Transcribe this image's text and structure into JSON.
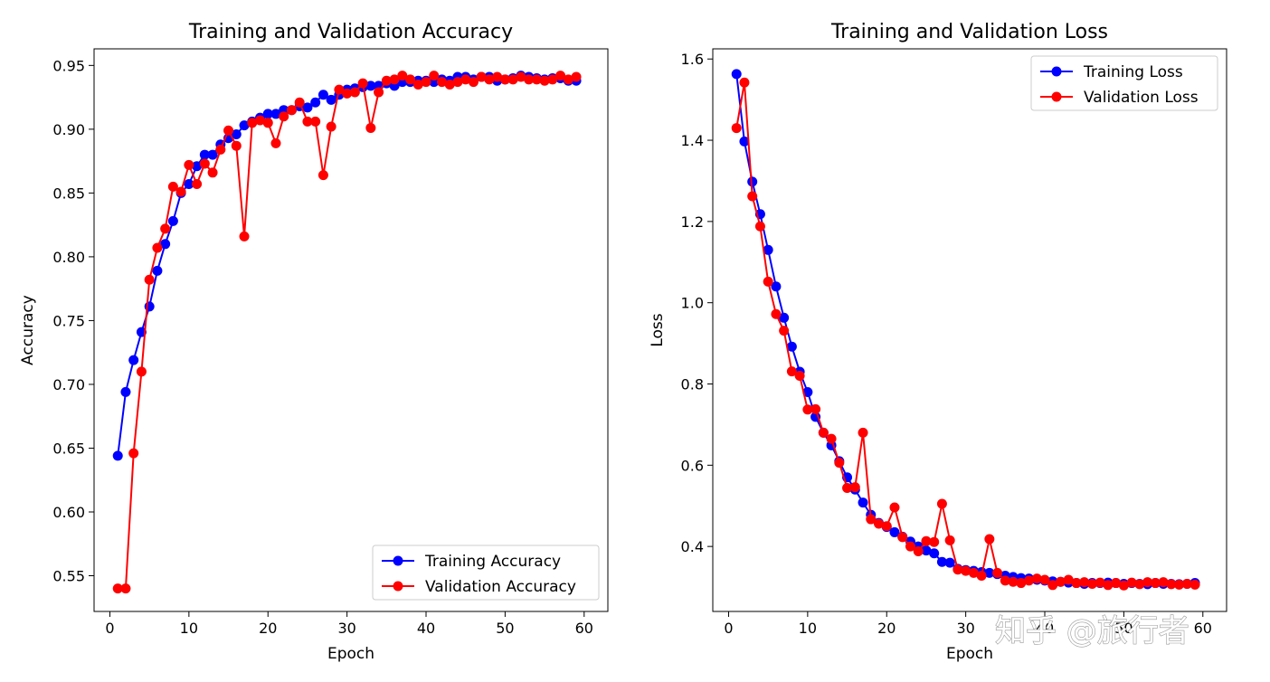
{
  "chart_data": [
    {
      "type": "line",
      "title": "Training and Validation Accuracy",
      "xlabel": "Epoch",
      "ylabel": "Accuracy",
      "xlim": [
        -2,
        63
      ],
      "ylim": [
        0.522,
        0.963
      ],
      "xticks": [
        0,
        10,
        20,
        30,
        40,
        50,
        60
      ],
      "yticks": [
        0.55,
        0.6,
        0.65,
        0.7,
        0.75,
        0.8,
        0.85,
        0.9,
        0.95
      ],
      "grid": false,
      "legend_position": "lower-right",
      "x": [
        1,
        2,
        3,
        4,
        5,
        6,
        7,
        8,
        9,
        10,
        11,
        12,
        13,
        14,
        15,
        16,
        17,
        18,
        19,
        20,
        21,
        22,
        23,
        24,
        25,
        26,
        27,
        28,
        29,
        30,
        31,
        32,
        33,
        34,
        35,
        36,
        37,
        38,
        39,
        40,
        41,
        42,
        43,
        44,
        45,
        46,
        47,
        48,
        49,
        50,
        51,
        52,
        53,
        54,
        55,
        56,
        57,
        58,
        59
      ],
      "series": [
        {
          "name": "Training Accuracy",
          "color": "#0000ff",
          "values": [
            0.644,
            0.694,
            0.719,
            0.741,
            0.761,
            0.789,
            0.81,
            0.828,
            0.85,
            0.857,
            0.871,
            0.88,
            0.88,
            0.888,
            0.893,
            0.896,
            0.903,
            0.906,
            0.909,
            0.912,
            0.912,
            0.915,
            0.915,
            0.918,
            0.917,
            0.921,
            0.927,
            0.923,
            0.927,
            0.931,
            0.932,
            0.933,
            0.934,
            0.934,
            0.936,
            0.934,
            0.937,
            0.937,
            0.938,
            0.938,
            0.937,
            0.939,
            0.938,
            0.941,
            0.941,
            0.939,
            0.941,
            0.941,
            0.938,
            0.939,
            0.94,
            0.942,
            0.941,
            0.94,
            0.939,
            0.94,
            0.94,
            0.938,
            0.938
          ]
        },
        {
          "name": "Validation Accuracy",
          "color": "#ff0000",
          "values": [
            0.54,
            0.54,
            0.646,
            0.71,
            0.782,
            0.807,
            0.822,
            0.855,
            0.851,
            0.872,
            0.857,
            0.873,
            0.866,
            0.884,
            0.899,
            0.887,
            0.816,
            0.905,
            0.907,
            0.905,
            0.889,
            0.91,
            0.915,
            0.921,
            0.906,
            0.906,
            0.864,
            0.902,
            0.931,
            0.928,
            0.929,
            0.936,
            0.901,
            0.929,
            0.938,
            0.939,
            0.942,
            0.939,
            0.935,
            0.937,
            0.942,
            0.937,
            0.935,
            0.937,
            0.939,
            0.937,
            0.941,
            0.939,
            0.941,
            0.939,
            0.939,
            0.941,
            0.939,
            0.939,
            0.938,
            0.939,
            0.942,
            0.939,
            0.941
          ]
        }
      ]
    },
    {
      "type": "line",
      "title": "Training and Validation Loss",
      "xlabel": "Epoch",
      "ylabel": "Loss",
      "xlim": [
        -2,
        63
      ],
      "ylim": [
        0.24,
        1.625
      ],
      "xticks": [
        0,
        10,
        20,
        30,
        40,
        50,
        60
      ],
      "xticklabels": [
        "0",
        "10",
        "20",
        "30",
        "40",
        "50",
        "60"
      ],
      "yticks": [
        0.4,
        0.6,
        0.8,
        1.0,
        1.2,
        1.4,
        1.6
      ],
      "grid": false,
      "legend_position": "upper-right",
      "x": [
        1,
        2,
        3,
        4,
        5,
        6,
        7,
        8,
        9,
        10,
        11,
        12,
        13,
        14,
        15,
        16,
        17,
        18,
        19,
        20,
        21,
        22,
        23,
        24,
        25,
        26,
        27,
        28,
        29,
        30,
        31,
        32,
        33,
        34,
        35,
        36,
        37,
        38,
        39,
        40,
        41,
        42,
        43,
        44,
        45,
        46,
        47,
        48,
        49,
        50,
        51,
        52,
        53,
        54,
        55,
        56,
        57,
        58,
        59
      ],
      "series": [
        {
          "name": "Training Loss",
          "color": "#0000ff",
          "values": [
            1.563,
            1.397,
            1.298,
            1.218,
            1.13,
            1.04,
            0.963,
            0.892,
            0.83,
            0.78,
            0.719,
            0.68,
            0.649,
            0.61,
            0.57,
            0.54,
            0.508,
            0.478,
            0.458,
            0.448,
            0.435,
            0.424,
            0.412,
            0.4,
            0.39,
            0.383,
            0.362,
            0.36,
            0.345,
            0.342,
            0.34,
            0.337,
            0.335,
            0.332,
            0.328,
            0.325,
            0.322,
            0.321,
            0.318,
            0.316,
            0.314,
            0.313,
            0.311,
            0.31,
            0.308,
            0.31,
            0.31,
            0.311,
            0.31,
            0.308,
            0.31,
            0.308,
            0.307,
            0.31,
            0.308,
            0.308,
            0.307,
            0.308,
            0.31
          ]
        },
        {
          "name": "Validation Loss",
          "color": "#ff0000",
          "values": [
            1.43,
            1.542,
            1.262,
            1.188,
            1.052,
            0.972,
            0.931,
            0.831,
            0.82,
            0.737,
            0.738,
            0.68,
            0.665,
            0.606,
            0.544,
            0.546,
            0.68,
            0.467,
            0.456,
            0.45,
            0.496,
            0.423,
            0.4,
            0.388,
            0.413,
            0.411,
            0.505,
            0.415,
            0.343,
            0.34,
            0.335,
            0.328,
            0.418,
            0.335,
            0.316,
            0.313,
            0.31,
            0.316,
            0.321,
            0.318,
            0.305,
            0.313,
            0.318,
            0.31,
            0.312,
            0.308,
            0.311,
            0.305,
            0.31,
            0.304,
            0.311,
            0.307,
            0.312,
            0.31,
            0.312,
            0.307,
            0.306,
            0.308,
            0.306
          ]
        }
      ]
    }
  ],
  "watermark": {
    "text": "知乎 @旅行者"
  }
}
